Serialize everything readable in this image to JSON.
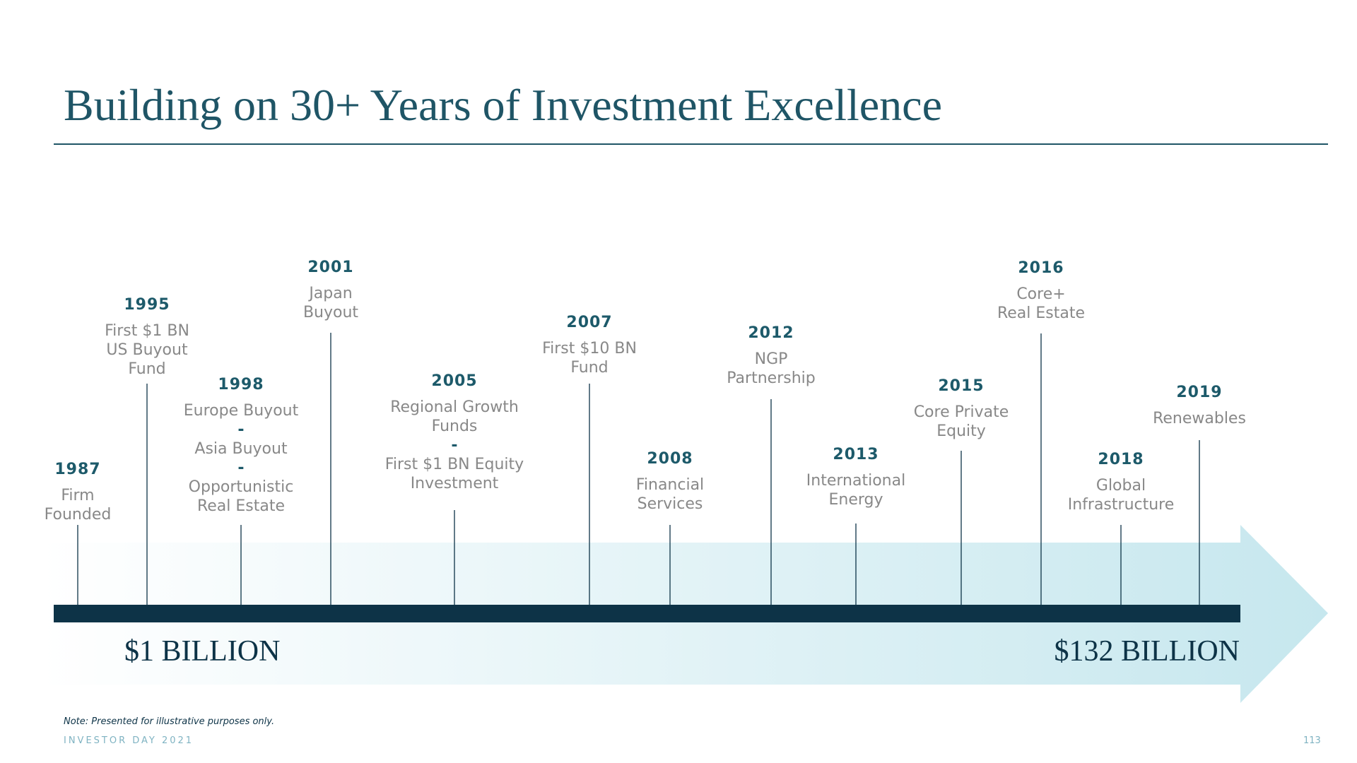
{
  "header": {
    "title": "Building on 30+ Years of Investment Excellence"
  },
  "milestones": [
    {
      "year": "1987",
      "lines": [
        "Firm",
        "Founded"
      ]
    },
    {
      "year": "1995",
      "lines": [
        "First $1 BN",
        "US Buyout",
        "Fund"
      ]
    },
    {
      "year": "1998",
      "lines": [
        "Europe Buyout",
        "-",
        "Asia Buyout",
        "-",
        "Opportunistic",
        "Real Estate"
      ]
    },
    {
      "year": "2001",
      "lines": [
        "Japan",
        "Buyout"
      ]
    },
    {
      "year": "2005",
      "lines": [
        "Regional Growth",
        "Funds",
        "-",
        "First $1 BN Equity",
        "Investment"
      ]
    },
    {
      "year": "2007",
      "lines": [
        "First $10 BN",
        "Fund"
      ]
    },
    {
      "year": "2008",
      "lines": [
        "Financial",
        "Services"
      ]
    },
    {
      "year": "2012",
      "lines": [
        "NGP",
        "Partnership"
      ]
    },
    {
      "year": "2013",
      "lines": [
        "International",
        "Energy"
      ]
    },
    {
      "year": "2015",
      "lines": [
        "Core Private",
        "Equity"
      ]
    },
    {
      "year": "2016",
      "lines": [
        "Core+",
        "Real Estate"
      ]
    },
    {
      "year": "2018",
      "lines": [
        "Global",
        "Infrastructure"
      ]
    },
    {
      "year": "2019",
      "lines": [
        "Renewables"
      ]
    }
  ],
  "start_label": "$1 BILLION",
  "end_label": "$132 BILLION",
  "note": "Note: Presented for illustrative purposes only.",
  "footer": {
    "event": "INVESTOR DAY 2021",
    "page": "113"
  }
}
